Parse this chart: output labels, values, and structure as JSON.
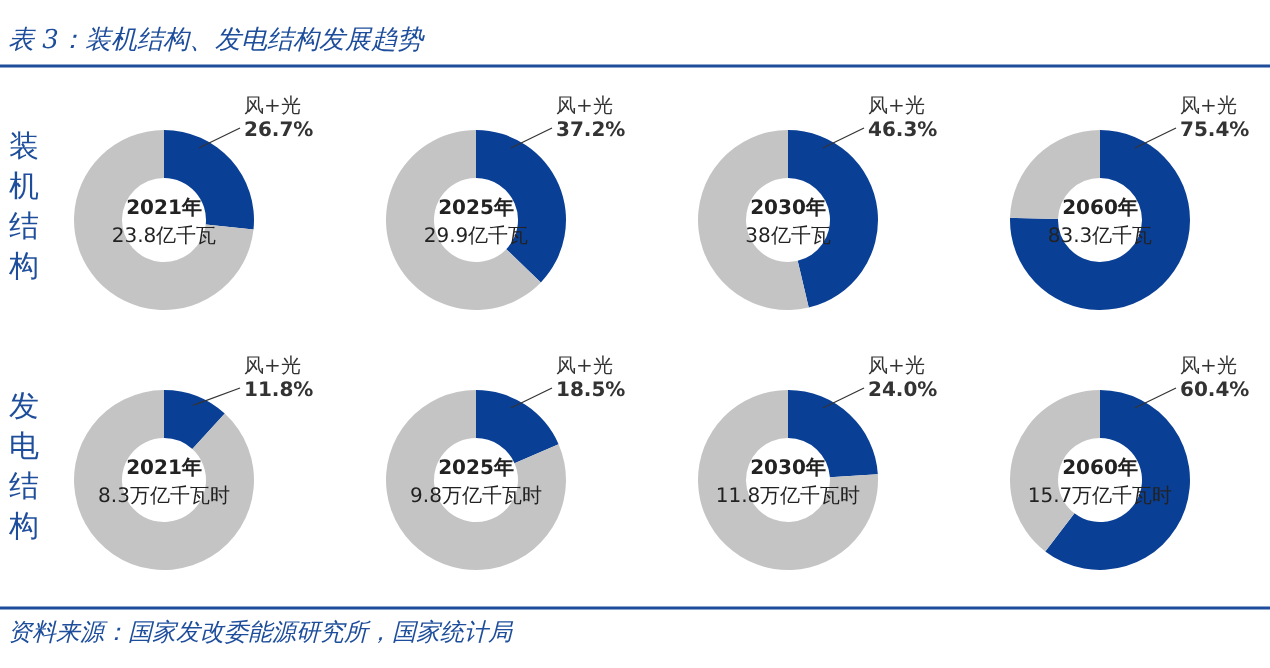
{
  "chart_data": [
    {
      "type": "donut",
      "title": "2021年",
      "subtitle": "23.8亿千瓦",
      "categories": [
        "风+光",
        null
      ],
      "values": [
        26.7,
        73.3
      ],
      "colors": [
        "#0a3f96",
        "#c4c4c4"
      ],
      "value_labels": [
        "26.7%",
        null
      ],
      "annotations": [
        "表 3：装机结构、发电结构发展趋势",
        "装机结构"
      ]
    },
    {
      "type": "donut",
      "title": "2025年",
      "subtitle": "29.9亿千瓦",
      "categories": [
        "风+光",
        null
      ],
      "values": [
        37.2,
        62.8
      ],
      "colors": [
        "#0a3f96",
        "#c4c4c4"
      ],
      "value_labels": [
        "37.2%",
        null
      ]
    },
    {
      "type": "donut",
      "title": "2030年",
      "subtitle": "38亿千瓦",
      "categories": [
        "风+光",
        null
      ],
      "values": [
        46.3,
        53.7
      ],
      "colors": [
        "#0a3f96",
        "#c4c4c4"
      ],
      "value_labels": [
        "46.3%",
        null
      ]
    },
    {
      "type": "donut",
      "title": "2060年",
      "subtitle": "83.3亿千瓦",
      "categories": [
        "风+光",
        null
      ],
      "values": [
        75.4,
        24.6
      ],
      "colors": [
        "#0a3f96",
        "#c4c4c4"
      ],
      "value_labels": [
        "75.4%",
        null
      ]
    },
    {
      "type": "donut",
      "title": "2021年",
      "subtitle": "8.3万亿千瓦时",
      "categories": [
        "风+光",
        null
      ],
      "values": [
        11.8,
        88.2
      ],
      "colors": [
        "#0a3f96",
        "#c4c4c4"
      ],
      "value_labels": [
        "11.8%",
        null
      ],
      "annotations": [
        "发电结构"
      ]
    },
    {
      "type": "donut",
      "title": "2025年",
      "subtitle": "9.8万亿千瓦时",
      "categories": [
        "风+光",
        null
      ],
      "values": [
        18.5,
        81.5
      ],
      "colors": [
        "#0a3f96",
        "#c4c4c4"
      ],
      "value_labels": [
        "18.5%",
        null
      ]
    },
    {
      "type": "donut",
      "title": "2030年",
      "subtitle": "11.8万亿千瓦时",
      "categories": [
        "风+光",
        null
      ],
      "values": [
        24.0,
        76.0
      ],
      "colors": [
        "#0a3f96",
        "#c4c4c4"
      ],
      "value_labels": [
        "24.0%",
        null
      ]
    },
    {
      "type": "donut",
      "title": "2060年",
      "subtitle": "15.7万亿千瓦时",
      "categories": [
        "风+光",
        null
      ],
      "values": [
        60.4,
        39.6
      ],
      "colors": [
        "#0a3f96",
        "#c4c4c4"
      ],
      "value_labels": [
        "60.4%",
        null
      ],
      "annotations": [
        "资料来源：国家发改委能源研究所，国家统计局"
      ]
    }
  ]
}
